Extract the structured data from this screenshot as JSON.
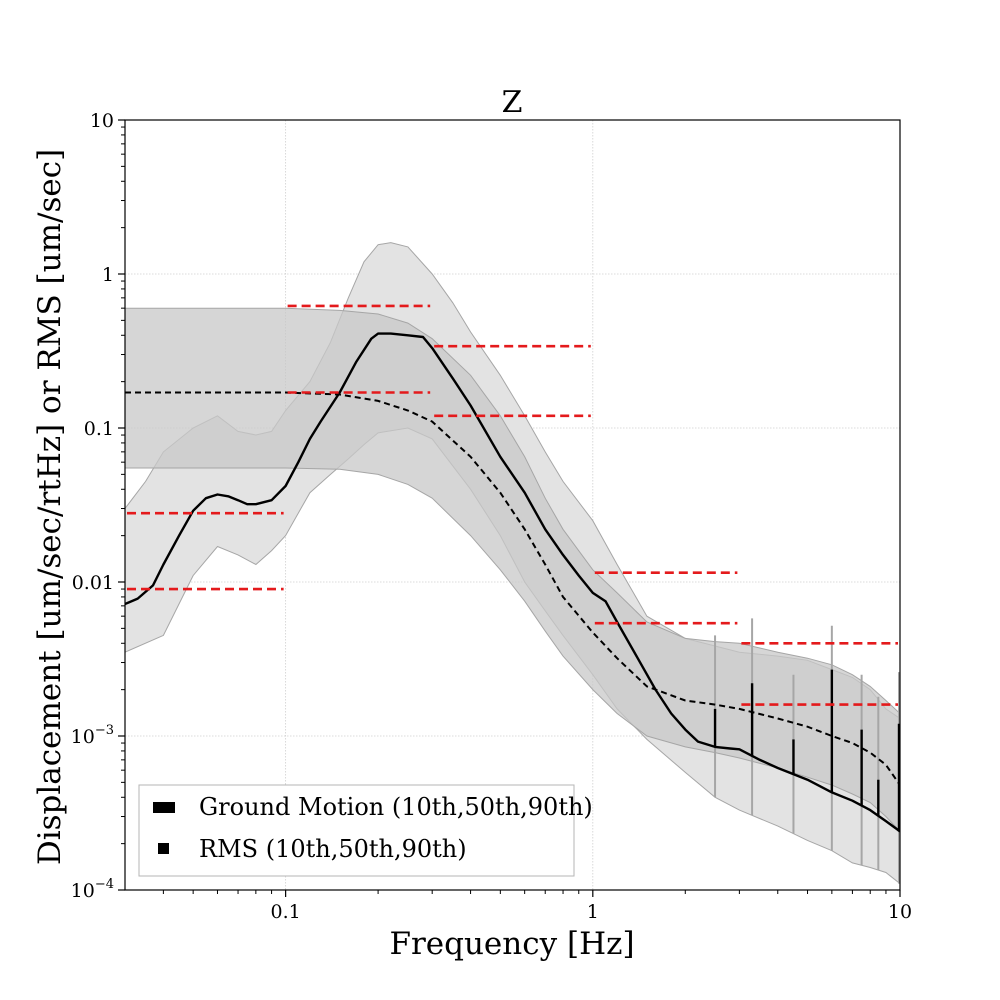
{
  "chart_data": {
    "type": "line",
    "title": "Z",
    "xlabel": "Frequency [Hz]",
    "ylabel": "Displacement [um/sec/rtHz] or RMS [um/sec]",
    "xscale": "log",
    "yscale": "log",
    "xlim": [
      0.03,
      10
    ],
    "ylim": [
      0.0001,
      10
    ],
    "grid": true,
    "x_ticks": [
      {
        "value": 0.1,
        "label": "0.1"
      },
      {
        "value": 1,
        "label": "1"
      },
      {
        "value": 10,
        "label": "10"
      }
    ],
    "y_ticks": [
      {
        "value": 0.0001,
        "mant": "10",
        "exp": "−4"
      },
      {
        "value": 0.001,
        "mant": "10",
        "exp": "−3"
      },
      {
        "value": 0.01,
        "mant": "0.01",
        "exp": ""
      },
      {
        "value": 0.1,
        "mant": "0.1",
        "exp": ""
      },
      {
        "value": 1,
        "mant": "1",
        "exp": ""
      },
      {
        "value": 10,
        "mant": "10",
        "exp": ""
      }
    ],
    "legend": {
      "position": "lower-left",
      "entries": [
        "Ground Motion (10th,50th,90th)",
        "RMS (10th,50th,90th)"
      ]
    },
    "colors": {
      "ground_motion": "#000000",
      "rms_band": "#e41a1c",
      "outer_band": "#e3e3e3",
      "inner_band": "#c8c8c8",
      "band_edge": "#a6a6a6"
    },
    "series": [
      {
        "role": "ground_motion_p50",
        "x": [
          0.03,
          0.033,
          0.037,
          0.04,
          0.045,
          0.05,
          0.055,
          0.06,
          0.065,
          0.07,
          0.075,
          0.08,
          0.09,
          0.1,
          0.11,
          0.12,
          0.13,
          0.15,
          0.17,
          0.19,
          0.2,
          0.22,
          0.25,
          0.28,
          0.3,
          0.35,
          0.4,
          0.5,
          0.6,
          0.7,
          0.8,
          0.9,
          1.0,
          1.1,
          1.2,
          1.4,
          1.6,
          1.8,
          2.0,
          2.2,
          2.5,
          2.8,
          3.0,
          3.5,
          4.0,
          5.0,
          6.0,
          7.0,
          8.0,
          9.0,
          10.0
        ],
        "y": [
          0.0072,
          0.0078,
          0.0095,
          0.013,
          0.02,
          0.029,
          0.035,
          0.037,
          0.036,
          0.034,
          0.032,
          0.032,
          0.034,
          0.042,
          0.06,
          0.085,
          0.11,
          0.17,
          0.27,
          0.38,
          0.41,
          0.41,
          0.4,
          0.39,
          0.33,
          0.21,
          0.14,
          0.065,
          0.038,
          0.022,
          0.015,
          0.011,
          0.0085,
          0.0075,
          0.0055,
          0.0032,
          0.002,
          0.0014,
          0.0011,
          0.00092,
          0.00085,
          0.00083,
          0.00082,
          0.0007,
          0.00062,
          0.00052,
          0.00043,
          0.00038,
          0.00033,
          0.00028,
          0.00024
        ]
      },
      {
        "role": "ground_motion_p10",
        "x": [
          0.03,
          0.04,
          0.05,
          0.06,
          0.07,
          0.08,
          0.09,
          0.1,
          0.11,
          0.12,
          0.14,
          0.16,
          0.18,
          0.2,
          0.25,
          0.3,
          0.4,
          0.5,
          0.6,
          0.7,
          0.8,
          1.0,
          1.2,
          1.5,
          2.0,
          2.5,
          3.0,
          4.0,
          5.0,
          6.0,
          7.0,
          8.0,
          9.0,
          10.0
        ],
        "y": [
          0.0035,
          0.0045,
          0.011,
          0.017,
          0.015,
          0.013,
          0.016,
          0.02,
          0.028,
          0.038,
          0.05,
          0.063,
          0.078,
          0.093,
          0.1,
          0.085,
          0.04,
          0.02,
          0.01,
          0.0065,
          0.0045,
          0.0025,
          0.0015,
          0.00095,
          0.00058,
          0.0004,
          0.00033,
          0.00026,
          0.00021,
          0.00018,
          0.00015,
          0.00014,
          0.00013,
          0.00011
        ]
      },
      {
        "role": "ground_motion_p90",
        "x": [
          0.03,
          0.035,
          0.04,
          0.05,
          0.06,
          0.07,
          0.08,
          0.09,
          0.1,
          0.12,
          0.14,
          0.16,
          0.18,
          0.2,
          0.22,
          0.25,
          0.3,
          0.35,
          0.4,
          0.5,
          0.6,
          0.7,
          0.8,
          1.0,
          1.2,
          1.5,
          2.0,
          3.0,
          4.0,
          5.0,
          6.0,
          7.0,
          8.0,
          9.0,
          10.0
        ],
        "y": [
          0.03,
          0.045,
          0.07,
          0.1,
          0.12,
          0.095,
          0.09,
          0.095,
          0.13,
          0.2,
          0.36,
          0.7,
          1.2,
          1.55,
          1.6,
          1.5,
          1.0,
          0.65,
          0.42,
          0.22,
          0.12,
          0.07,
          0.045,
          0.025,
          0.013,
          0.006,
          0.0043,
          0.0035,
          0.0033,
          0.0031,
          0.0027,
          0.0024,
          0.002,
          0.0015,
          0.0013
        ]
      },
      {
        "role": "rms_p50",
        "x": [
          0.03,
          0.06,
          0.1,
          0.15,
          0.2,
          0.25,
          0.3,
          0.4,
          0.5,
          0.6,
          0.7,
          0.8,
          1.0,
          1.2,
          1.5,
          2.0,
          2.5,
          3.0,
          4.0,
          5.0,
          6.0,
          7.0,
          8.0,
          9.0,
          10.0
        ],
        "y": [
          0.17,
          0.17,
          0.17,
          0.165,
          0.15,
          0.13,
          0.11,
          0.065,
          0.038,
          0.022,
          0.013,
          0.008,
          0.0047,
          0.0032,
          0.0021,
          0.0017,
          0.0016,
          0.0015,
          0.0013,
          0.00115,
          0.001,
          0.0009,
          0.00078,
          0.00065,
          0.00048
        ]
      },
      {
        "role": "rms_p10",
        "x": [
          0.03,
          0.1,
          0.15,
          0.2,
          0.25,
          0.3,
          0.4,
          0.5,
          0.6,
          0.7,
          0.8,
          1.0,
          1.2,
          1.5,
          2.0,
          2.5,
          3.0,
          4.0,
          5.0,
          6.0,
          7.0,
          8.0,
          9.0,
          10.0
        ],
        "y": [
          0.055,
          0.055,
          0.054,
          0.05,
          0.043,
          0.035,
          0.02,
          0.012,
          0.0075,
          0.0048,
          0.0033,
          0.002,
          0.0014,
          0.001,
          0.00085,
          0.00078,
          0.00072,
          0.00062,
          0.00054,
          0.00048,
          0.00042,
          0.00037,
          0.0003,
          0.00024
        ]
      },
      {
        "role": "rms_p90",
        "x": [
          0.03,
          0.1,
          0.15,
          0.2,
          0.25,
          0.3,
          0.4,
          0.5,
          0.6,
          0.7,
          0.8,
          1.0,
          1.2,
          1.5,
          2.0,
          2.5,
          3.0,
          4.0,
          5.0,
          6.0,
          7.0,
          8.0,
          9.0,
          10.0
        ],
        "y": [
          0.6,
          0.6,
          0.58,
          0.55,
          0.48,
          0.38,
          0.22,
          0.12,
          0.065,
          0.035,
          0.022,
          0.012,
          0.0085,
          0.0055,
          0.0043,
          0.0041,
          0.004,
          0.0035,
          0.0032,
          0.0029,
          0.0025,
          0.0021,
          0.0017,
          0.0014
        ]
      }
    ],
    "spikes": [
      {
        "x": 2.5,
        "p50": 0.0015,
        "p90": 0.0045
      },
      {
        "x": 3.3,
        "p50": 0.0022,
        "p90": 0.0058
      },
      {
        "x": 4.5,
        "p50": 0.00095,
        "p90": 0.0025
      },
      {
        "x": 6.0,
        "p50": 0.0027,
        "p90": 0.0052
      },
      {
        "x": 7.5,
        "p50": 0.0011,
        "p90": 0.0025
      },
      {
        "x": 8.5,
        "p50": 0.00052,
        "p90": 0.0018
      },
      {
        "x": 10.0,
        "p50": 0.0012,
        "p90": 0.0026
      }
    ],
    "rms_bands": [
      {
        "x_start": 0.03,
        "x_end": 0.1,
        "p10": 0.009,
        "p90": 0.028
      },
      {
        "x_start": 0.1,
        "x_end": 0.3,
        "p10": 0.17,
        "p90": 0.62
      },
      {
        "x_start": 0.3,
        "x_end": 1.0,
        "p10": 0.12,
        "p90": 0.34
      },
      {
        "x_start": 1.0,
        "x_end": 3.0,
        "p10": 0.0054,
        "p90": 0.0115
      },
      {
        "x_start": 3.0,
        "x_end": 10.0,
        "p10": 0.0016,
        "p90": 0.004
      }
    ]
  }
}
